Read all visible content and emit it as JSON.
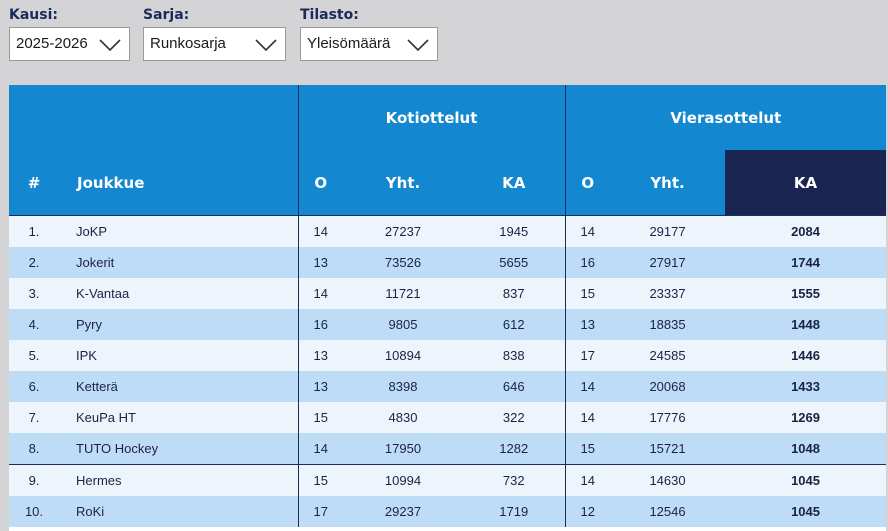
{
  "filters": [
    {
      "label": "Kausi:",
      "value": "2025-2026"
    },
    {
      "label": "Sarja:",
      "value": "Runkosarja"
    },
    {
      "label": "Tilasto:",
      "value": "Yleisömäärä"
    }
  ],
  "table": {
    "groups": {
      "home": "Kotiottelut",
      "away": "Vierasottelut"
    },
    "columns": {
      "rank": "#",
      "team": "Joukkue",
      "home_games": "O",
      "home_total": "Yht.",
      "home_avg": "KA",
      "away_games": "O",
      "away_total": "Yht.",
      "away_avg": "KA"
    },
    "rows": [
      {
        "rank": "1.",
        "team": "JoKP",
        "hg": "14",
        "ht": "27237",
        "ha": "1945",
        "ag": "14",
        "at": "29177",
        "aa": "2084"
      },
      {
        "rank": "2.",
        "team": "Jokerit",
        "hg": "13",
        "ht": "73526",
        "ha": "5655",
        "ag": "16",
        "at": "27917",
        "aa": "1744"
      },
      {
        "rank": "3.",
        "team": "K-Vantaa",
        "hg": "14",
        "ht": "11721",
        "ha": "837",
        "ag": "15",
        "at": "23337",
        "aa": "1555"
      },
      {
        "rank": "4.",
        "team": "Pyry",
        "hg": "16",
        "ht": "9805",
        "ha": "612",
        "ag": "13",
        "at": "18835",
        "aa": "1448"
      },
      {
        "rank": "5.",
        "team": "IPK",
        "hg": "13",
        "ht": "10894",
        "ha": "838",
        "ag": "17",
        "at": "24585",
        "aa": "1446"
      },
      {
        "rank": "6.",
        "team": "Ketterä",
        "hg": "13",
        "ht": "8398",
        "ha": "646",
        "ag": "14",
        "at": "20068",
        "aa": "1433"
      },
      {
        "rank": "7.",
        "team": "KeuPa HT",
        "hg": "15",
        "ht": "4830",
        "ha": "322",
        "ag": "14",
        "at": "17776",
        "aa": "1269"
      },
      {
        "rank": "8.",
        "team": "TUTO Hockey",
        "hg": "14",
        "ht": "17950",
        "ha": "1282",
        "ag": "15",
        "at": "15721",
        "aa": "1048"
      },
      {
        "rank": "9.",
        "team": "Hermes",
        "hg": "15",
        "ht": "10994",
        "ha": "732",
        "ag": "14",
        "at": "14630",
        "aa": "1045"
      },
      {
        "rank": "10.",
        "team": "RoKi",
        "hg": "17",
        "ht": "29237",
        "ha": "1719",
        "ag": "12",
        "at": "12546",
        "aa": "1045"
      }
    ]
  },
  "colors": {
    "header_blue": "#1387cf",
    "dark_navy": "#1b2552",
    "row_light": "#eef4fb",
    "row_blue": "#bfdcf7"
  }
}
